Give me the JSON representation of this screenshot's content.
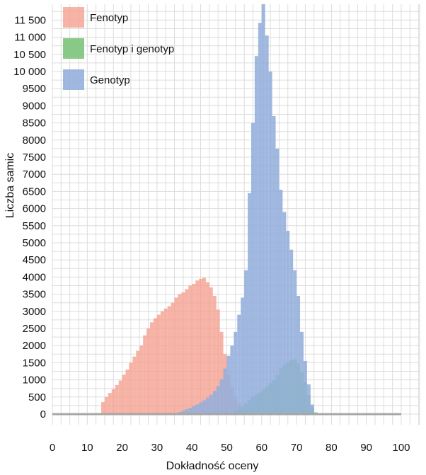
{
  "chart_data": {
    "type": "bar",
    "title": "",
    "xlabel": "Dokładność oceny",
    "ylabel": "Liczba samic",
    "xlim": [
      0,
      100
    ],
    "ylim": [
      0,
      11800
    ],
    "x_ticks": [
      0,
      10,
      20,
      30,
      40,
      50,
      60,
      70,
      80,
      90,
      100
    ],
    "y_ticks": [
      0,
      500,
      1000,
      1500,
      2000,
      2500,
      3000,
      3500,
      4000,
      4500,
      5000,
      5500,
      6000,
      6500,
      7000,
      7500,
      8000,
      8500,
      9000,
      9500,
      10000,
      10500,
      11000,
      11500
    ],
    "y_tick_labels": [
      "0",
      "500",
      "1000",
      "1500",
      "2000",
      "2500",
      "3000",
      "3500",
      "4000",
      "4500",
      "5000",
      "5500",
      "6000",
      "6500",
      "7000",
      "7500",
      "8000",
      "8500",
      "9000",
      "9500",
      "10 000",
      "10 500",
      "11 000",
      "11 500"
    ],
    "grid": true,
    "legend_position": "top-left",
    "baseline_color": "#a6a6a6",
    "series": [
      {
        "name": "Fenotyp",
        "color": "#f4a090",
        "opacity": 0.8,
        "x": [
          14.5,
          15.5,
          16.5,
          17.5,
          18.5,
          19.5,
          20.5,
          21.5,
          22.5,
          23.5,
          24.5,
          25.5,
          26.5,
          27.5,
          28.5,
          29.5,
          30.5,
          31.5,
          32.5,
          33.5,
          34.5,
          35.5,
          36.5,
          37.5,
          38.5,
          39.5,
          40.5,
          41.5,
          42.5,
          43.5,
          44.5,
          45.5,
          46.5,
          47.5,
          48.5,
          49.5,
          50.5,
          51.5,
          52.5,
          53.5,
          54.5,
          55.5,
          56.5
        ],
        "values": [
          350,
          500,
          620,
          730,
          850,
          980,
          1150,
          1300,
          1500,
          1680,
          1850,
          2000,
          2300,
          2500,
          2680,
          2800,
          2900,
          3000,
          3080,
          3150,
          3250,
          3400,
          3500,
          3550,
          3650,
          3750,
          3800,
          3900,
          3950,
          3980,
          3850,
          3700,
          3450,
          3050,
          2400,
          1750,
          1150,
          780,
          500,
          320,
          180,
          80,
          20
        ]
      },
      {
        "name": "Fenotyp i genotyp",
        "color": "#7cc47b",
        "opacity": 0.9,
        "x": [
          52.5,
          53.5,
          54.5,
          55.5,
          56.5,
          57.5,
          58.5,
          59.5,
          60.5,
          61.5,
          62.5,
          63.5,
          64.5,
          65.5,
          66.5,
          67.5,
          68.5,
          69.5,
          70.5,
          71.5,
          72.5,
          73.5,
          74.5,
          75.5
        ],
        "values": [
          80,
          150,
          230,
          310,
          420,
          520,
          580,
          630,
          720,
          800,
          900,
          1000,
          1150,
          1350,
          1450,
          1520,
          1580,
          1600,
          1480,
          1230,
          930,
          560,
          200,
          50
        ]
      },
      {
        "name": "Genotyp",
        "color": "#93aedc",
        "opacity": 0.88,
        "x": [
          36.5,
          37.5,
          38.5,
          39.5,
          40.5,
          41.5,
          42.5,
          43.5,
          44.5,
          45.5,
          46.5,
          47.5,
          48.5,
          49.5,
          50.5,
          51.5,
          52.5,
          53.5,
          54.5,
          55.5,
          56.5,
          57.5,
          58.5,
          59.5,
          60.5,
          61.5,
          62.5,
          63.5,
          64.5,
          65.5,
          66.5,
          67.5,
          68.5,
          69.5,
          70.5,
          71.5,
          72.5,
          73.5,
          74.5
        ],
        "values": [
          60,
          100,
          140,
          180,
          230,
          280,
          340,
          400,
          480,
          560,
          680,
          820,
          1020,
          1330,
          1700,
          2000,
          2400,
          2900,
          3400,
          4200,
          6450,
          8500,
          10450,
          11420,
          12000,
          11050,
          10000,
          8700,
          7750,
          6550,
          5900,
          5350,
          4800,
          4200,
          3450,
          2400,
          1550,
          870,
          280
        ]
      }
    ]
  }
}
